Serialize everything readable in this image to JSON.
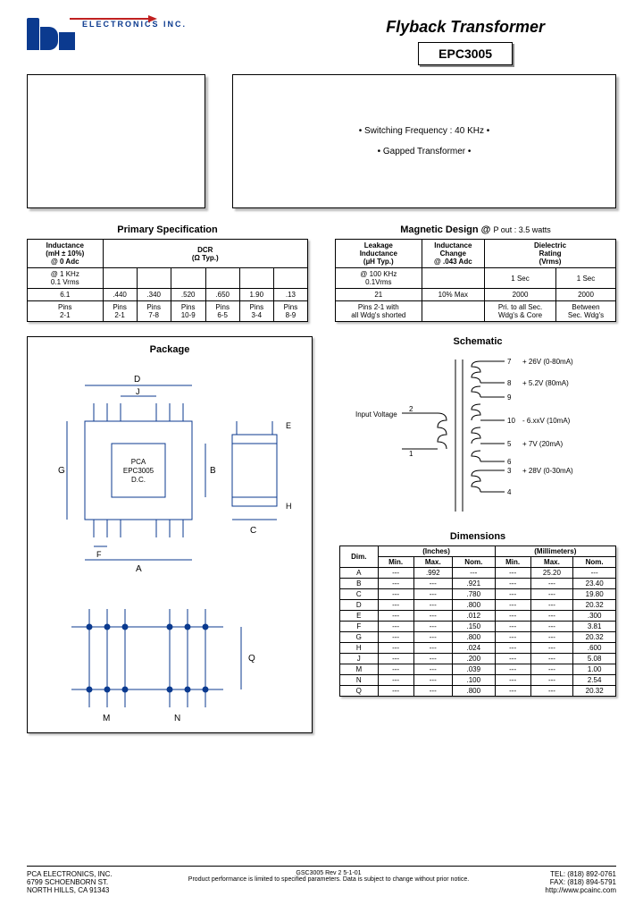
{
  "logo": {
    "company_text": "ELECTRONICS INC."
  },
  "header": {
    "title": "Flyback Transformer",
    "part_number": "EPC3005"
  },
  "features": {
    "line1": "•   Switching Frequency : 40 KHz   •",
    "line2": "•   Gapped Transformer   •"
  },
  "primary_spec": {
    "title": "Primary Specification",
    "headers": {
      "inductance": "Inductance\n(mH ± 10%)\n@ 0 Adc",
      "dcr": "DCR\n(Ω Typ.)"
    },
    "cond_row": [
      "@ 1 KHz\n0.1 Vrms",
      "",
      "",
      "",
      "",
      "",
      ""
    ],
    "value_row": [
      "6.1",
      ".440",
      ".340",
      ".520",
      ".650",
      "1.90",
      ".13"
    ],
    "pins_row": [
      "Pins\n2-1",
      "Pins\n2-1",
      "Pins\n7-8",
      "Pins\n10-9",
      "Pins\n6-5",
      "Pins\n3-4",
      "Pins\n8-9"
    ]
  },
  "magnetic_design": {
    "title": "Magnetic Design @ ",
    "title_sub": "P out :  3.5 watts",
    "headers": {
      "leakage": "Leakage\nInductance\n(µH Typ.)",
      "ind_change": "Inductance\nChange\n@ .043 Adc",
      "dielectric": "Dielectric\nRating\n(Vrms)"
    },
    "cond_row": [
      "@ 100 KHz\n0.1Vrms",
      "",
      "1 Sec",
      "1 Sec"
    ],
    "value_row": [
      "21",
      "10% Max",
      "2000",
      "2000"
    ],
    "pins_row": [
      "Pins 2-1 with\nall Wdg's shorted",
      "",
      "Pri. to all Sec.\nWdg's & Core",
      "Between\nSec. Wdg's"
    ]
  },
  "package": {
    "title": "Package",
    "chip_label": "PCA\nEPC3005\nD.C."
  },
  "schematic": {
    "title": "Schematic",
    "input_label": "Input Voltage",
    "pins": {
      "p7": "7",
      "p7v": "+ 26V (0-80mA)",
      "p8": "8",
      "p8v": "+ 5.2V (80mA)",
      "p9": "9",
      "p10": "10",
      "p10v": "- 6.xxV (10mA)",
      "p5": "5",
      "p5v": "+ 7V (20mA)",
      "p6": "6",
      "p3": "3",
      "p3v": "+ 28V (0-30mA)",
      "p4": "4",
      "p2": "2",
      "p1": "1"
    }
  },
  "dimensions": {
    "title": "Dimensions",
    "unit_in": "(Inches)",
    "unit_mm": "(Millimeters)",
    "col_headers": [
      "Dim.",
      "Min.",
      "Max.",
      "Nom.",
      "Min.",
      "Max.",
      "Nom."
    ],
    "rows": [
      [
        "A",
        "---",
        ".992",
        "---",
        "---",
        "25.20",
        "---"
      ],
      [
        "B",
        "---",
        "---",
        ".921",
        "---",
        "---",
        "23.40"
      ],
      [
        "C",
        "---",
        "---",
        ".780",
        "---",
        "---",
        "19.80"
      ],
      [
        "D",
        "---",
        "---",
        ".800",
        "---",
        "---",
        "20.32"
      ],
      [
        "E",
        "---",
        "---",
        ".012",
        "---",
        "---",
        ".300"
      ],
      [
        "F",
        "---",
        "---",
        ".150",
        "---",
        "---",
        "3.81"
      ],
      [
        "G",
        "---",
        "---",
        ".800",
        "---",
        "---",
        "20.32"
      ],
      [
        "H",
        "---",
        "---",
        ".024",
        "---",
        "---",
        ".600"
      ],
      [
        "J",
        "---",
        "---",
        ".200",
        "---",
        "---",
        "5.08"
      ],
      [
        "M",
        "---",
        "---",
        ".039",
        "---",
        "---",
        "1.00"
      ],
      [
        "N",
        "---",
        "---",
        ".100",
        "---",
        "---",
        "2.54"
      ],
      [
        "Q",
        "---",
        "---",
        ".800",
        "---",
        "---",
        "20.32"
      ]
    ]
  },
  "footer": {
    "company": "PCA ELECTRONICS, INC.",
    "addr1": "6799 SCHOENBORN ST.",
    "addr2": "NORTH HILLS, CA  91343",
    "doc": "GSC3005     Rev 2     5-1-01",
    "disclaimer": "Product performance is limited to specified parameters.   Data is subject to change without prior notice.",
    "tel": "TEL: (818) 892-0761",
    "fax": "FAX: (818) 894-5791",
    "web": "http://www.pcainc.com"
  },
  "colors": {
    "brand_blue": "#0b3a8f",
    "pointer_red": "#c02020",
    "shadow": "#bbbbbb",
    "text": "#000000",
    "bg": "#ffffff"
  }
}
